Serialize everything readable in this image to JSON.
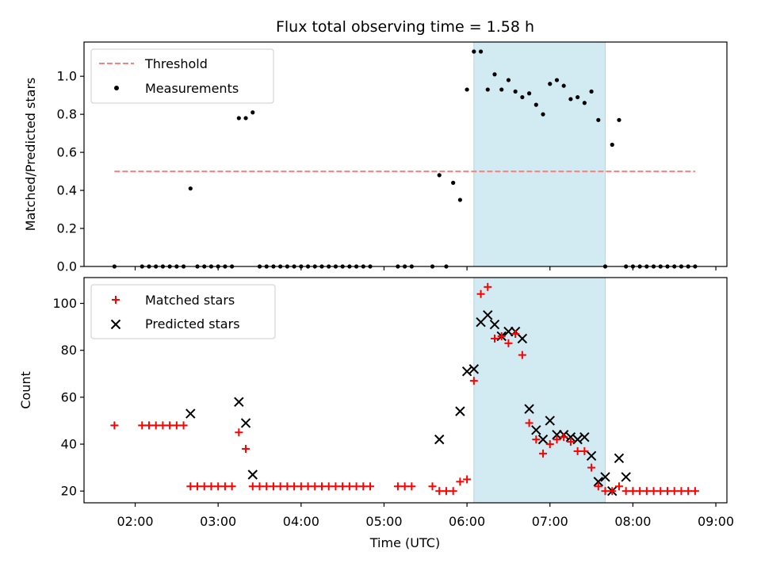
{
  "title": "Flux total observing time = 1.58 h",
  "colors": {
    "threshold": "#ff7f7f",
    "measurements": "#000000",
    "matched": "#ff0000",
    "predicted": "#000000",
    "shade": "#add8e6"
  },
  "chart_data": [
    {
      "type": "scatter",
      "ylabel": "Matched/Predicted stars",
      "xlim": [
        "01:23",
        "09:08"
      ],
      "ylim": [
        0,
        1.18
      ],
      "yticks": [
        "0.0",
        "0.2",
        "0.4",
        "0.6",
        "0.8",
        "1.0"
      ],
      "ytick_values": [
        0,
        0.2,
        0.4,
        0.6,
        0.8,
        1.0
      ],
      "shaded_range": [
        "06:05",
        "07:40"
      ],
      "legend_location": "upper-left",
      "threshold": {
        "name": "Threshold",
        "value": 0.5,
        "x_range": [
          "01:45",
          "08:45"
        ],
        "style": "dashed"
      },
      "series": [
        {
          "name": "Measurements",
          "marker": "dot",
          "x": [
            "01:45",
            "02:05",
            "02:10",
            "02:15",
            "02:20",
            "02:25",
            "02:30",
            "02:35",
            "02:40",
            "02:45",
            "02:50",
            "02:55",
            "03:00",
            "03:05",
            "03:10",
            "03:15",
            "03:20",
            "03:25",
            "03:30",
            "03:35",
            "03:40",
            "03:45",
            "03:50",
            "03:55",
            "04:00",
            "04:05",
            "04:10",
            "04:15",
            "04:20",
            "04:25",
            "04:30",
            "04:35",
            "04:40",
            "04:45",
            "04:50",
            "05:10",
            "05:15",
            "05:20",
            "05:35",
            "05:40",
            "05:45",
            "05:50",
            "05:55",
            "06:00",
            "06:05",
            "06:10",
            "06:15",
            "06:20",
            "06:25",
            "06:30",
            "06:35",
            "06:40",
            "06:45",
            "06:50",
            "06:55",
            "07:00",
            "07:05",
            "07:10",
            "07:15",
            "07:20",
            "07:25",
            "07:30",
            "07:35",
            "07:40",
            "07:45",
            "07:50",
            "07:55",
            "08:00",
            "08:05",
            "08:10",
            "08:15",
            "08:20",
            "08:25",
            "08:30",
            "08:35",
            "08:40",
            "08:45"
          ],
          "values": [
            0,
            0,
            0,
            0,
            0,
            0,
            0,
            0,
            0.41,
            0,
            0,
            0,
            0,
            0,
            0,
            0.78,
            0.78,
            0.81,
            0,
            0,
            0,
            0,
            0,
            0,
            0,
            0,
            0,
            0,
            0,
            0,
            0,
            0,
            0,
            0,
            0,
            0,
            0,
            0,
            0,
            0.48,
            0,
            0.44,
            0.35,
            0.93,
            1.13,
            1.13,
            0.93,
            1.01,
            0.93,
            0.98,
            0.92,
            0.89,
            0.91,
            0.85,
            0.8,
            0.96,
            0.98,
            0.95,
            0.88,
            0.89,
            0.86,
            0.92,
            0.77,
            0,
            0.64,
            0.77,
            0,
            0,
            0,
            0,
            0,
            0,
            0,
            0,
            0,
            0,
            0
          ]
        }
      ]
    },
    {
      "type": "scatter",
      "xlabel": "Time (UTC)",
      "ylabel": "Count",
      "xlim": [
        "01:23",
        "09:08"
      ],
      "ylim": [
        15,
        111
      ],
      "xticks": [
        "02:00",
        "03:00",
        "04:00",
        "05:00",
        "06:00",
        "07:00",
        "08:00",
        "09:00"
      ],
      "yticks": [
        "20",
        "40",
        "60",
        "80",
        "100"
      ],
      "ytick_values": [
        20,
        40,
        60,
        80,
        100
      ],
      "shaded_range": [
        "06:05",
        "07:40"
      ],
      "legend_location": "upper-left",
      "series": [
        {
          "name": "Matched stars",
          "marker": "plus",
          "x": [
            "01:45",
            "02:05",
            "02:10",
            "02:15",
            "02:20",
            "02:25",
            "02:30",
            "02:35",
            "02:40",
            "02:45",
            "02:50",
            "02:55",
            "03:00",
            "03:05",
            "03:10",
            "03:15",
            "03:20",
            "03:25",
            "03:30",
            "03:35",
            "03:40",
            "03:45",
            "03:50",
            "03:55",
            "04:00",
            "04:05",
            "04:10",
            "04:15",
            "04:20",
            "04:25",
            "04:30",
            "04:35",
            "04:40",
            "04:45",
            "04:50",
            "05:10",
            "05:15",
            "05:20",
            "05:35",
            "05:40",
            "05:45",
            "05:50",
            "05:55",
            "06:00",
            "06:05",
            "06:10",
            "06:15",
            "06:20",
            "06:25",
            "06:30",
            "06:35",
            "06:40",
            "06:45",
            "06:50",
            "06:55",
            "07:00",
            "07:05",
            "07:10",
            "07:15",
            "07:20",
            "07:25",
            "07:30",
            "07:35",
            "07:40",
            "07:45",
            "07:50",
            "07:55",
            "08:00",
            "08:05",
            "08:10",
            "08:15",
            "08:20",
            "08:25",
            "08:30",
            "08:35",
            "08:40",
            "08:45"
          ],
          "values": [
            48,
            48,
            48,
            48,
            48,
            48,
            48,
            48,
            22,
            22,
            22,
            22,
            22,
            22,
            22,
            45,
            38,
            22,
            22,
            22,
            22,
            22,
            22,
            22,
            22,
            22,
            22,
            22,
            22,
            22,
            22,
            22,
            22,
            22,
            22,
            22,
            22,
            22,
            22,
            20,
            20,
            20,
            24,
            25,
            67,
            104,
            107,
            85,
            86,
            83,
            87,
            78,
            49,
            42,
            36,
            40,
            42,
            43,
            41,
            37,
            37,
            30,
            22,
            20,
            20,
            22,
            20,
            20,
            20,
            20,
            20,
            20,
            20,
            20,
            20,
            20,
            20
          ]
        },
        {
          "name": "Predicted stars",
          "marker": "x",
          "x": [
            "02:40",
            "03:15",
            "03:20",
            "03:25",
            "05:40",
            "05:55",
            "06:00",
            "06:05",
            "06:10",
            "06:15",
            "06:20",
            "06:25",
            "06:30",
            "06:35",
            "06:40",
            "06:45",
            "06:50",
            "06:55",
            "07:00",
            "07:05",
            "07:10",
            "07:15",
            "07:20",
            "07:25",
            "07:30",
            "07:35",
            "07:40",
            "07:45",
            "07:50",
            "07:55"
          ],
          "values": [
            53,
            58,
            49,
            27,
            42,
            54,
            71,
            72,
            92,
            95,
            91,
            86,
            88,
            88,
            85,
            55,
            46,
            42,
            50,
            44,
            44,
            43,
            42,
            43,
            35,
            24,
            26,
            20,
            34,
            26
          ]
        }
      ]
    }
  ]
}
